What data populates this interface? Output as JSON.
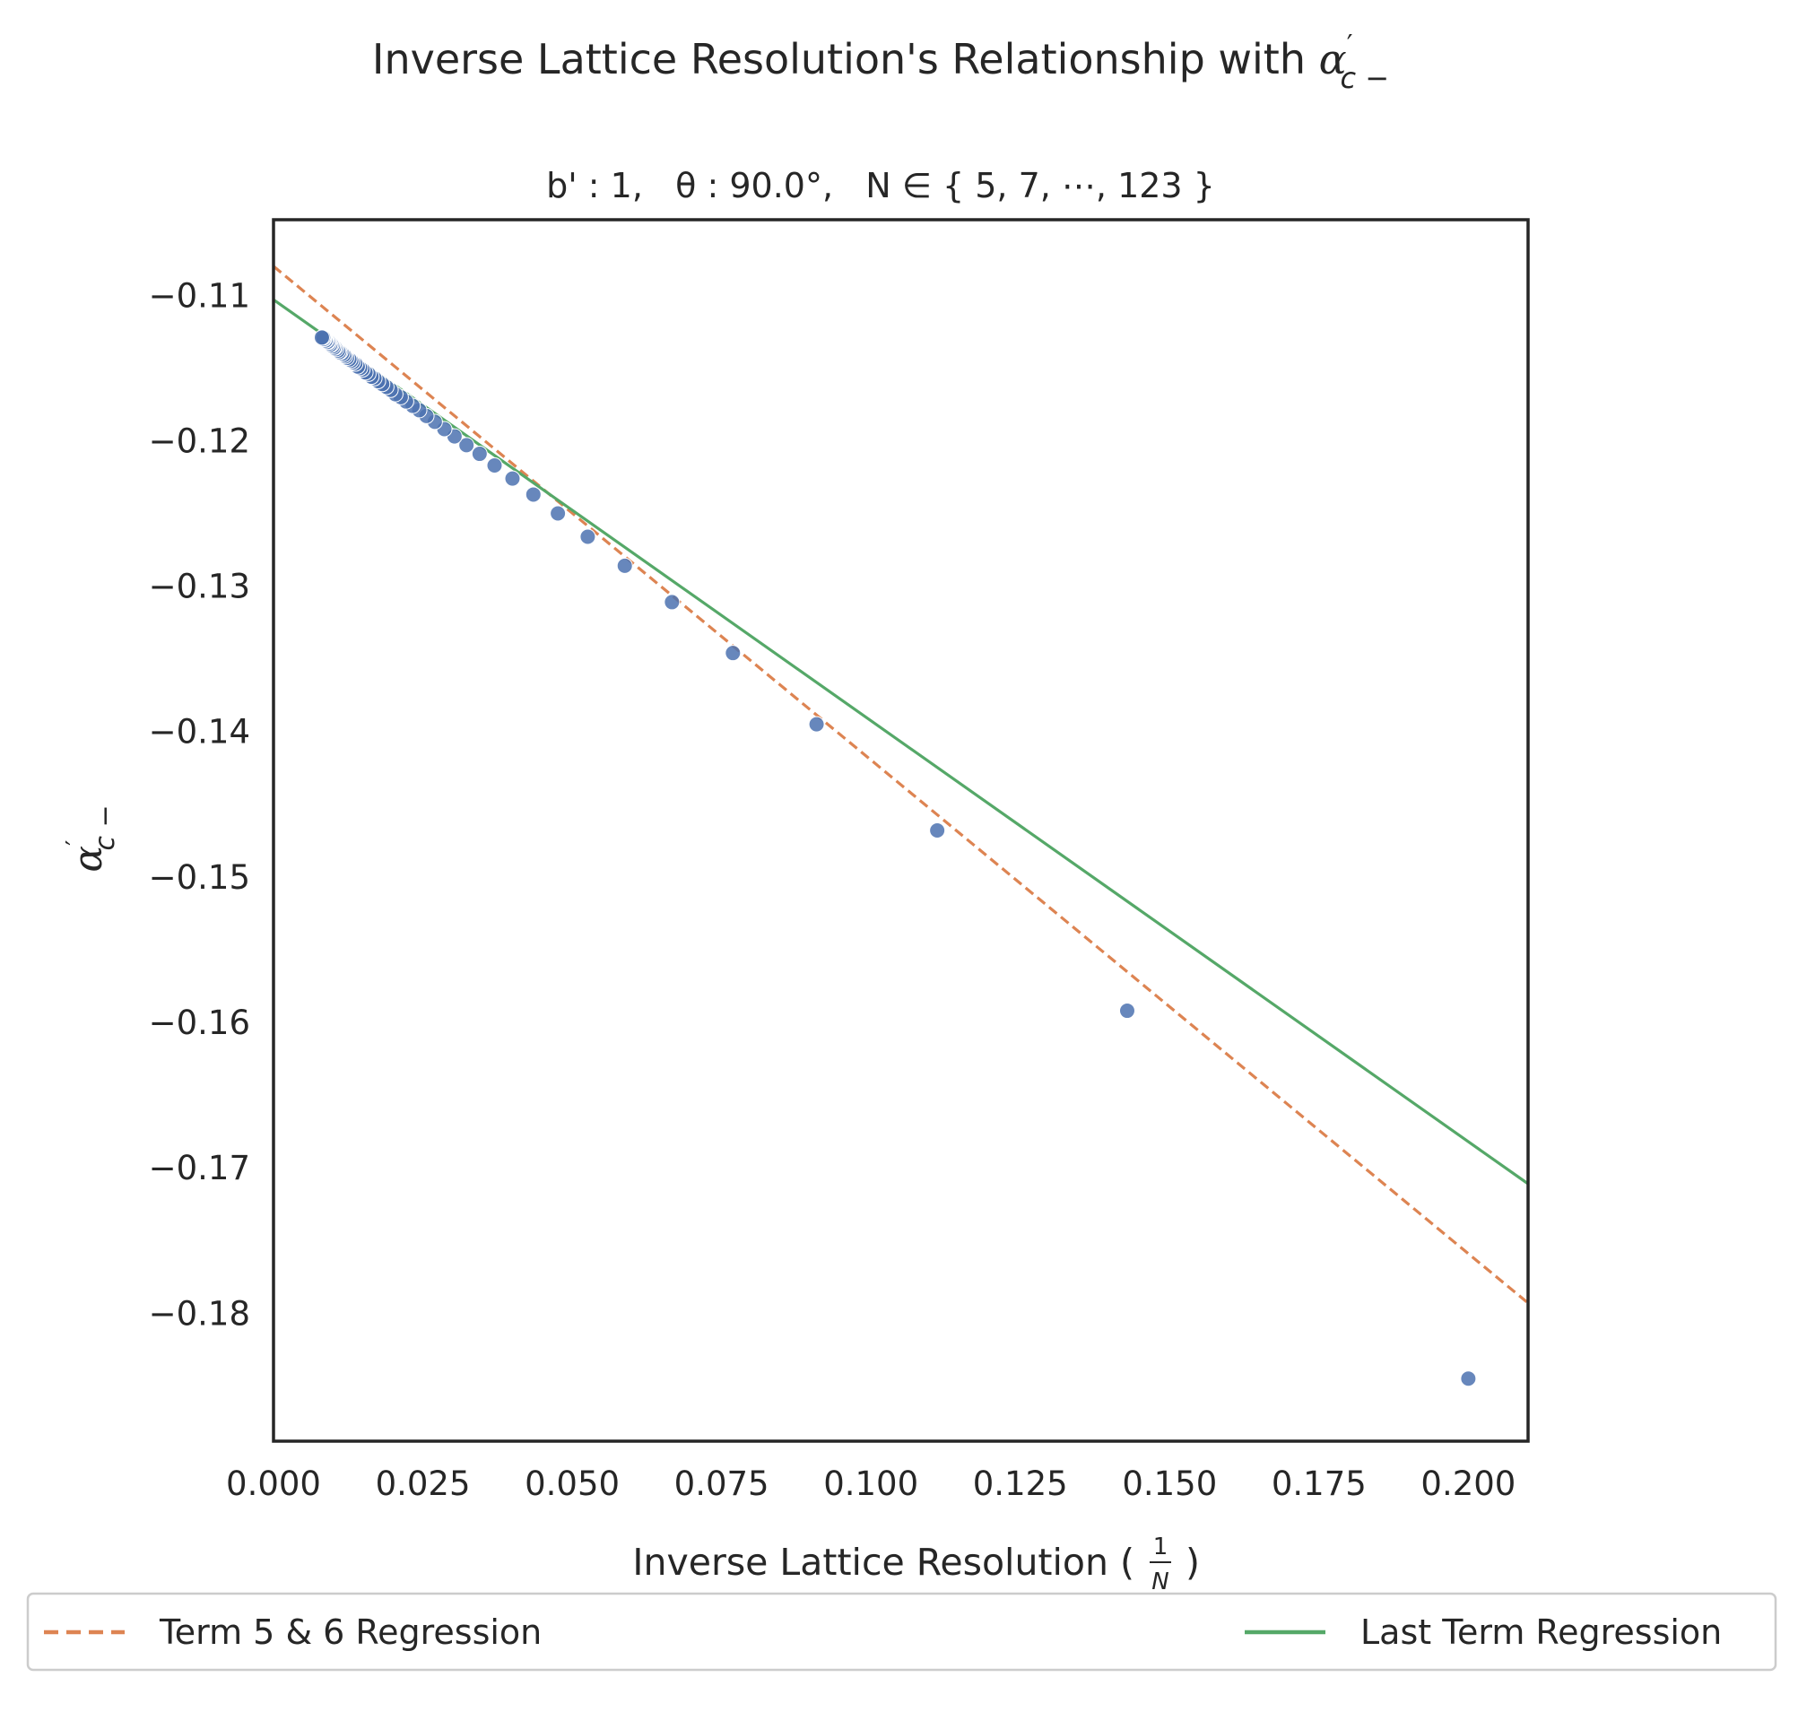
{
  "chart_data": {
    "type": "scatter",
    "title": "Inverse Lattice Resolution's Relationship with α′c −",
    "title_parts": {
      "text": "Inverse Lattice Resolution's Relationship with ",
      "symbol": "α",
      "prime": "′",
      "sub": "c −"
    },
    "subtitle": "b' : 1,   θ : 90.0°,   N ∈ { 5, 7, ⋯, 123 }",
    "xlabel": "Inverse Lattice Resolution ( 1/N )",
    "xlabel_parts": {
      "text_before": "Inverse Lattice Resolution (",
      "frac_num": "1",
      "frac_den": "N",
      "text_after": ")"
    },
    "ylabel": "α′c −",
    "ylabel_parts": {
      "symbol": "α",
      "prime": "′",
      "sub": "c −"
    },
    "xlim": [
      0.0,
      0.21
    ],
    "ylim": [
      -0.1888,
      -0.1048
    ],
    "xticks": [
      0.0,
      0.025,
      0.05,
      0.075,
      0.1,
      0.125,
      0.15,
      0.175,
      0.2
    ],
    "xtick_labels": [
      "0.000",
      "0.025",
      "0.050",
      "0.075",
      "0.100",
      "0.125",
      "0.150",
      "0.175",
      "0.200"
    ],
    "yticks": [
      -0.11,
      -0.12,
      -0.13,
      -0.14,
      -0.15,
      -0.16,
      -0.17,
      -0.18
    ],
    "ytick_labels": [
      "−0.11",
      "−0.12",
      "−0.13",
      "−0.14",
      "−0.15",
      "−0.16",
      "−0.17",
      "−0.18"
    ],
    "grid": false,
    "legend_position": "bottom, outside plot",
    "legend": [
      "Term 5 & 6 Regression",
      "Last Term Regression"
    ],
    "series": [
      {
        "kind": "scatter",
        "color": "#4c72b0",
        "points": [
          [
            0.2,
            -0.1845
          ],
          [
            0.1429,
            -0.1592
          ],
          [
            0.1111,
            -0.1468
          ],
          [
            0.0909,
            -0.1395
          ],
          [
            0.0769,
            -0.1346
          ],
          [
            0.0667,
            -0.1311
          ],
          [
            0.0588,
            -0.1286
          ],
          [
            0.0526,
            -0.1266
          ],
          [
            0.0476,
            -0.125
          ],
          [
            0.0435,
            -0.1237
          ],
          [
            0.04,
            -0.1226
          ],
          [
            0.037,
            -0.1217
          ],
          [
            0.0345,
            -0.1209
          ],
          [
            0.0323,
            -0.1203
          ],
          [
            0.0303,
            -0.1197
          ],
          [
            0.0286,
            -0.1192
          ],
          [
            0.027,
            -0.1187
          ],
          [
            0.0256,
            -0.1183
          ],
          [
            0.0244,
            -0.1179
          ],
          [
            0.0233,
            -0.1176
          ],
          [
            0.0222,
            -0.1173
          ],
          [
            0.0213,
            -0.117
          ],
          [
            0.0204,
            -0.1168
          ],
          [
            0.0196,
            -0.1165
          ],
          [
            0.0189,
            -0.1163
          ],
          [
            0.0182,
            -0.1161
          ],
          [
            0.0175,
            -0.1159
          ],
          [
            0.0169,
            -0.1157
          ],
          [
            0.0164,
            -0.1156
          ],
          [
            0.0159,
            -0.1154
          ],
          [
            0.0154,
            -0.1153
          ],
          [
            0.0149,
            -0.1151
          ],
          [
            0.0145,
            -0.115
          ],
          [
            0.0141,
            -0.1149
          ],
          [
            0.0137,
            -0.1147
          ],
          [
            0.0133,
            -0.1146
          ],
          [
            0.013,
            -0.1145
          ],
          [
            0.0127,
            -0.1144
          ],
          [
            0.0123,
            -0.1143
          ],
          [
            0.012,
            -0.1142
          ],
          [
            0.0118,
            -0.1141
          ],
          [
            0.0115,
            -0.114
          ],
          [
            0.0112,
            -0.1139
          ],
          [
            0.011,
            -0.1139
          ],
          [
            0.0108,
            -0.1138
          ],
          [
            0.0105,
            -0.1137
          ],
          [
            0.0103,
            -0.1136
          ],
          [
            0.0101,
            -0.1136
          ],
          [
            0.0099,
            -0.1135
          ],
          [
            0.0097,
            -0.1134
          ],
          [
            0.0095,
            -0.1134
          ],
          [
            0.0093,
            -0.1133
          ],
          [
            0.0092,
            -0.1132
          ],
          [
            0.009,
            -0.1132
          ],
          [
            0.0088,
            -0.1131
          ],
          [
            0.0087,
            -0.1131
          ],
          [
            0.0085,
            -0.113
          ],
          [
            0.0084,
            -0.113
          ],
          [
            0.0083,
            -0.1129
          ],
          [
            0.0081,
            -0.1129
          ]
        ]
      },
      {
        "kind": "line",
        "name": "Term 5 & 6 Regression",
        "color": "#dd8452",
        "style": "dashed",
        "x": [
          0.0,
          0.21
        ],
        "y": [
          -0.108,
          -0.1793
        ]
      },
      {
        "kind": "line",
        "name": "Last Term Regression",
        "color": "#55a868",
        "style": "solid",
        "x": [
          0.0,
          0.21
        ],
        "y": [
          -0.1103,
          -0.1711
        ]
      }
    ]
  }
}
